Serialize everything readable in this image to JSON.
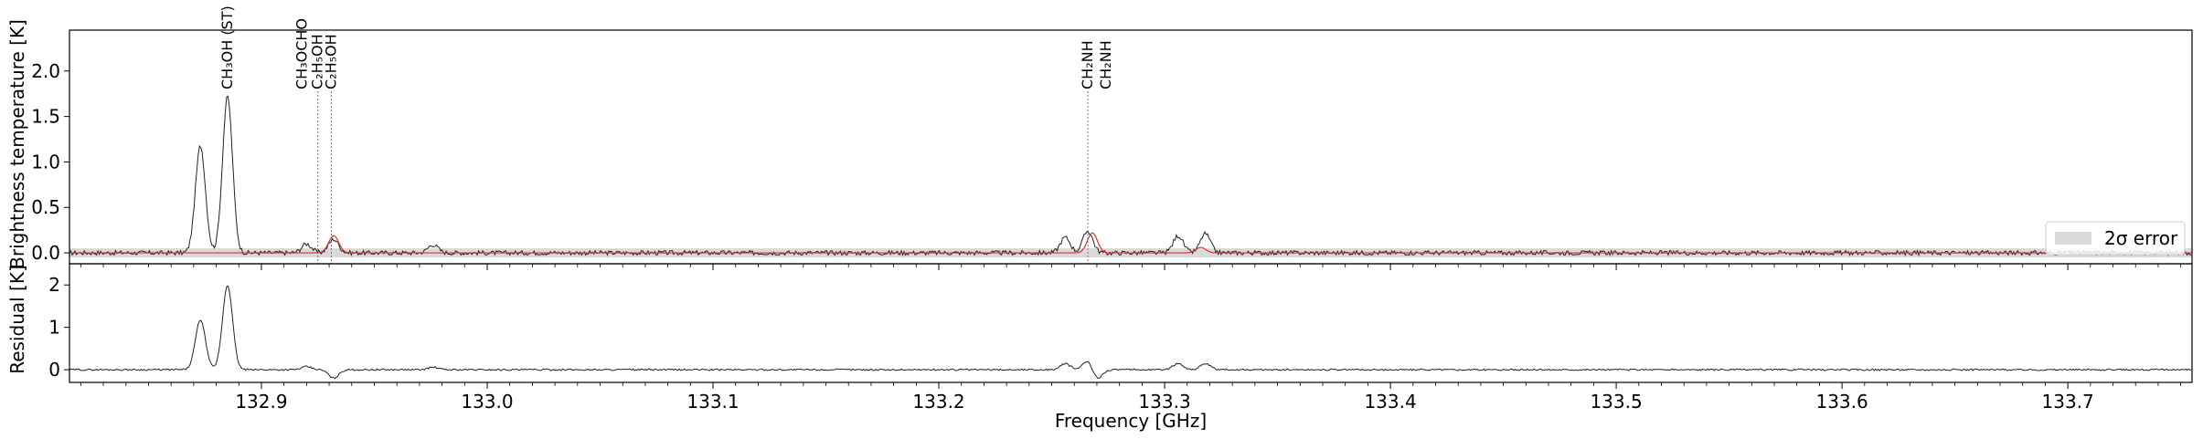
{
  "chart_data": [
    {
      "type": "line",
      "panel": "spectrum",
      "ylabel": "Brightness temperature [K]",
      "xlim": [
        132.815,
        133.755
      ],
      "ylim": [
        -0.12,
        2.45
      ],
      "yticks": [
        0.0,
        0.5,
        1.0,
        1.5,
        2.0
      ],
      "ytick_labels": [
        "0.0",
        "0.5",
        "1.0",
        "1.5",
        "2.0"
      ],
      "colors": {
        "observed": "#222222",
        "model": "#e03030",
        "error_band": "#d9d9d9",
        "marker_line": "#777777"
      },
      "series": [
        {
          "name": "observed",
          "peaks": [
            {
              "x": 132.873,
              "y": 1.18
            },
            {
              "x": 132.885,
              "y": 1.72
            },
            {
              "x": 132.92,
              "y": 0.1
            },
            {
              "x": 132.932,
              "y": 0.15
            },
            {
              "x": 132.976,
              "y": 0.09
            },
            {
              "x": 133.256,
              "y": 0.17
            },
            {
              "x": 133.266,
              "y": 0.24
            },
            {
              "x": 133.306,
              "y": 0.19
            },
            {
              "x": 133.318,
              "y": 0.21
            }
          ]
        },
        {
          "name": "model",
          "peaks": [
            {
              "x": 132.932,
              "y": 0.19
            },
            {
              "x": 133.268,
              "y": 0.22
            },
            {
              "x": 133.316,
              "y": 0.06
            }
          ]
        }
      ],
      "noise_level": 0.025,
      "error_band_halfwidth": 0.05,
      "line_markers": [
        {
          "x": 132.885,
          "label": "CH₃OH (ST)",
          "dotted": false
        },
        {
          "x": 132.918,
          "label": "CH₃OCHO",
          "dotted": false
        },
        {
          "x": 132.925,
          "label": "C₂H₅OH",
          "dotted": true
        },
        {
          "x": 132.931,
          "label": "C₂H₅OH",
          "dotted": true
        },
        {
          "x": 133.266,
          "label": "CH₂NH",
          "dotted": true
        },
        {
          "x": 133.274,
          "label": "CH₂NH",
          "dotted": false
        }
      ],
      "legend": {
        "placement": "right",
        "entries": [
          "2σ error"
        ]
      }
    },
    {
      "type": "line",
      "panel": "residual",
      "xlabel": "Frequency [GHz]",
      "ylabel": "Residual [K]",
      "xlim": [
        132.815,
        133.755
      ],
      "ylim": [
        -0.3,
        2.5
      ],
      "yticks": [
        0,
        1,
        2
      ],
      "ytick_labels": [
        "0",
        "1",
        "2"
      ],
      "xticks": [
        132.9,
        133.0,
        133.1,
        133.2,
        133.3,
        133.4,
        133.5,
        133.6,
        133.7
      ],
      "xtick_labels": [
        "132.9",
        "133.0",
        "133.1",
        "133.2",
        "133.3",
        "133.4",
        "133.5",
        "133.6",
        "133.7"
      ],
      "series": [
        {
          "name": "residual",
          "peaks": [
            {
              "x": 132.873,
              "y": 1.18
            },
            {
              "x": 132.885,
              "y": 2.0
            },
            {
              "x": 132.92,
              "y": 0.07
            },
            {
              "x": 132.932,
              "y": -0.2
            },
            {
              "x": 132.976,
              "y": 0.06
            },
            {
              "x": 133.256,
              "y": 0.14
            },
            {
              "x": 133.266,
              "y": 0.22
            },
            {
              "x": 133.27,
              "y": -0.22
            },
            {
              "x": 133.306,
              "y": 0.15
            },
            {
              "x": 133.318,
              "y": 0.14
            }
          ]
        }
      ]
    }
  ]
}
